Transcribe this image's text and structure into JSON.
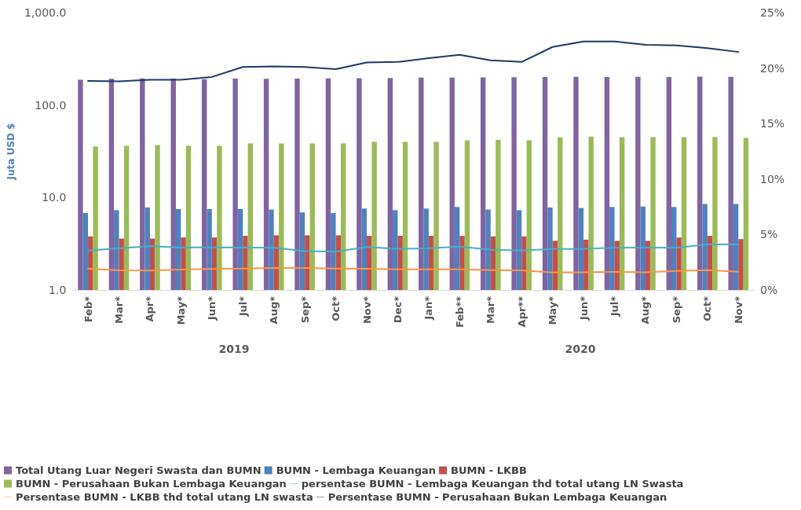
{
  "chart_data": {
    "type": "bar",
    "ylabel": "Juta USD $",
    "categories": [
      "Feb*",
      "Mar*",
      "Apr*",
      "May*",
      "Jun*",
      "Jul*",
      "Aug*",
      "Sep*",
      "Oct*",
      "Nov*",
      "Dec*",
      "Jan*",
      "Feb**",
      "Mar*",
      "Apr**",
      "May*",
      "Jun*",
      "Jul*",
      "Aug*",
      "Sep*",
      "Oct*",
      "Nov*"
    ],
    "annotations": [
      "2019",
      "2020"
    ],
    "log": "y",
    "ylim": [
      1,
      1000
    ],
    "yticks": [
      {
        "value": 1,
        "label": "1.0"
      },
      {
        "value": 10,
        "label": "10.0"
      },
      {
        "value": 100,
        "label": "100.0"
      },
      {
        "value": 1000,
        "label": "1,000.0"
      }
    ],
    "y2lim": [
      0,
      25
    ],
    "y2ticks": [
      {
        "value": 0,
        "label": "0%"
      },
      {
        "value": 5,
        "label": "5%"
      },
      {
        "value": 10,
        "label": "10%"
      },
      {
        "value": 15,
        "label": "15%"
      },
      {
        "value": 20,
        "label": "20%"
      },
      {
        "value": 25,
        "label": "25%"
      }
    ],
    "grid": false,
    "legend": "bottom",
    "series": [
      {
        "name": "Total Utang Luar Negeri Swasta dan BUMN",
        "color": "#8064a2",
        "values": [
          188,
          192,
          194,
          193,
          190,
          193,
          192,
          193,
          194,
          195,
          196,
          198,
          198,
          199,
          200,
          201,
          202,
          201,
          202,
          201,
          203,
          202
        ]
      },
      {
        "name": "BUMN - Lembaga Keuangan",
        "color": "#4f81bd",
        "values": [
          6.8,
          7.3,
          7.8,
          7.5,
          7.5,
          7.5,
          7.4,
          6.9,
          6.8,
          7.6,
          7.3,
          7.6,
          7.9,
          7.4,
          7.3,
          7.8,
          7.7,
          7.9,
          8.0,
          7.9,
          8.5,
          8.5
        ]
      },
      {
        "name": "BUMN - LKBB",
        "color": "#c0504d",
        "values": [
          3.8,
          3.6,
          3.6,
          3.7,
          3.7,
          3.85,
          3.9,
          3.9,
          3.9,
          3.85,
          3.85,
          3.85,
          3.85,
          3.8,
          3.8,
          3.4,
          3.5,
          3.4,
          3.4,
          3.7,
          3.85,
          3.55
        ]
      },
      {
        "name": "BUMN - Perusahaan Bukan Lembaga Keuangan",
        "color": "#9bbb59",
        "values": [
          35.5,
          36.3,
          37,
          36.3,
          36.3,
          38.4,
          38.4,
          38.4,
          38.4,
          40,
          40,
          40,
          41.5,
          42,
          41.5,
          44.8,
          45.7,
          45,
          45,
          45,
          45,
          44
        ]
      },
      {
        "name": "persentase BUMN - Lembaga Keuangan thd total utang LN Swasta",
        "type": "line",
        "axis": "y2",
        "color": "#4bacc6",
        "values": [
          3.56,
          3.75,
          3.94,
          3.82,
          3.85,
          3.82,
          3.8,
          3.5,
          3.45,
          3.87,
          3.7,
          3.75,
          3.92,
          3.63,
          3.56,
          3.7,
          3.7,
          3.8,
          3.82,
          3.8,
          4.1,
          4.1
        ]
      },
      {
        "name": "Persentase BUMN - LKBB thd total utang LN swasta",
        "type": "line",
        "axis": "y2",
        "color": "#f79646",
        "values": [
          1.91,
          1.77,
          1.75,
          1.84,
          1.89,
          1.93,
          1.98,
          1.98,
          1.93,
          1.91,
          1.86,
          1.86,
          1.86,
          1.79,
          1.77,
          1.58,
          1.6,
          1.63,
          1.6,
          1.72,
          1.79,
          1.65
        ]
      },
      {
        "name": "Persentase BUMN - Perusahaan Bukan Lembaga Keuangan",
        "type": "line",
        "axis": "y2",
        "color": "#1f3864",
        "values": [
          18.84,
          18.8,
          18.95,
          18.95,
          19.2,
          20.1,
          20.15,
          20.1,
          19.9,
          20.5,
          20.55,
          20.9,
          21.2,
          20.7,
          20.55,
          21.9,
          22.4,
          22.4,
          22.1,
          22.05,
          21.8,
          21.45
        ]
      }
    ]
  }
}
